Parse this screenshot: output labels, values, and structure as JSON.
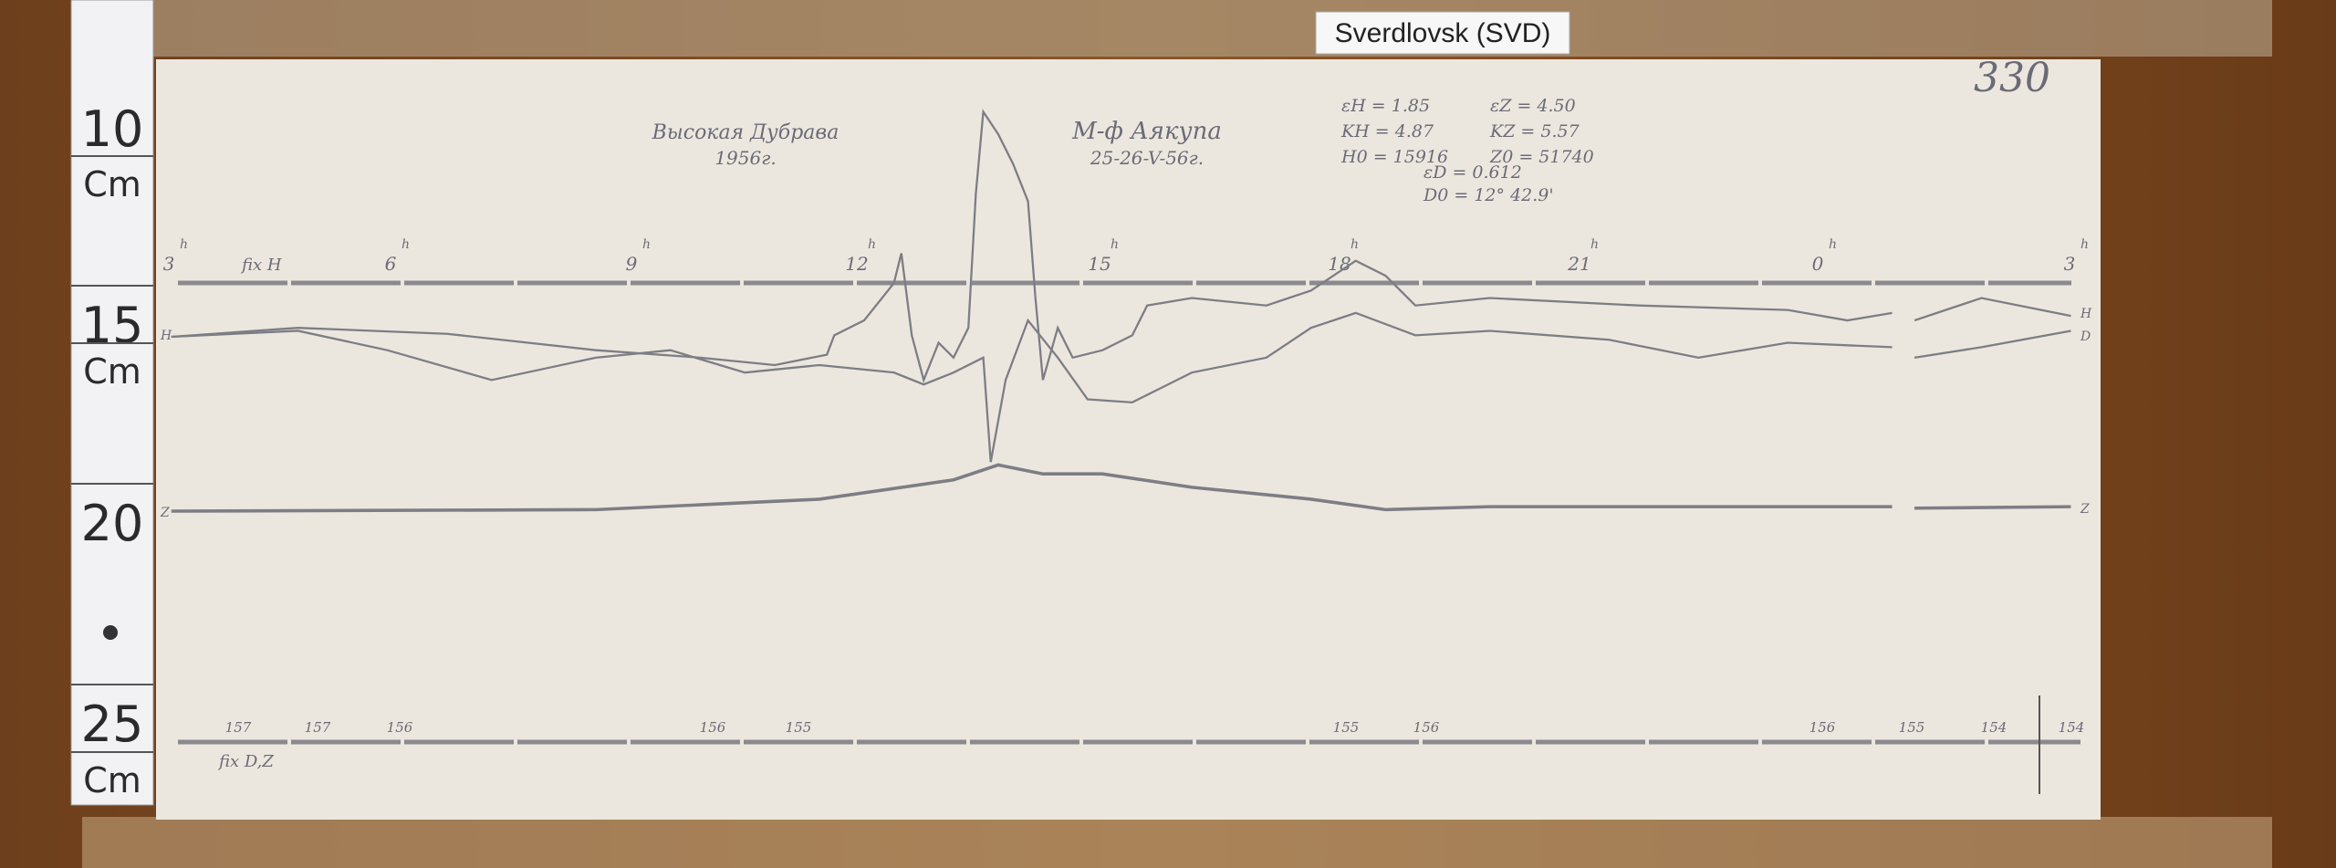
{
  "label": "Sverdlovsk (SVD)",
  "ruler": [
    "10",
    "Cm",
    "15",
    "Cm",
    "20",
    "25",
    "Cm"
  ],
  "sheet": {
    "number": "330",
    "station": "Высокая Дубрава",
    "year": "1956г.",
    "storm": "М-ф Аякупа",
    "dates": "25-26-V-56г.",
    "constants": [
      "εH = 1.85",
      "εZ = 4.50",
      "KH = 4.87",
      "KZ = 5.57",
      "H0 = 15916",
      "Z0 = 51740"
    ],
    "eps_d": "εD = 0.612",
    "d0": "D0 = 12° 42.9'",
    "hours": [
      "3",
      "6",
      "9",
      "12",
      "15",
      "18",
      "21",
      "0",
      "3"
    ],
    "hour_mark": "h",
    "fix_h": "fix H",
    "fix_dz": "fix D,Z",
    "trace_h": "H",
    "trace_d": "D",
    "trace_z": "Z",
    "base_labels": [
      "157",
      "157",
      "156",
      "156",
      "155",
      "155",
      "156",
      "156",
      "155",
      "154",
      "154"
    ]
  }
}
